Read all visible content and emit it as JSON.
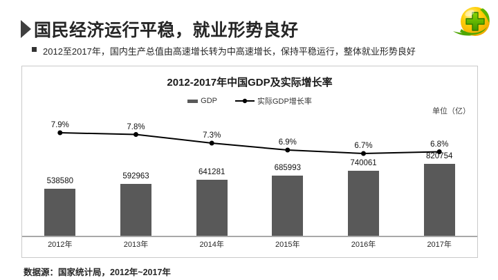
{
  "header": {
    "title": "国民经济运行平稳，就业形势良好",
    "bullet": "2012至2017年，国内生产总值由高速增长转为中高速增长，保持平稳运行，整体就业形势良好"
  },
  "chart_data": {
    "type": "bar+line",
    "title": "2012-2017年中国GDP及实际增长率",
    "unit_label": "单位（亿）",
    "categories": [
      "2012年",
      "2013年",
      "2014年",
      "2015年",
      "2016年",
      "2017年"
    ],
    "series": [
      {
        "name": "GDP",
        "type": "bar",
        "color": "#595959",
        "values": [
          538580,
          592963,
          641281,
          685993,
          740061,
          820754
        ]
      },
      {
        "name": "实际GDP增长率",
        "type": "line",
        "color": "#000000",
        "values": [
          7.9,
          7.8,
          7.3,
          6.9,
          6.7,
          6.8
        ],
        "labels": [
          "7.9%",
          "7.8%",
          "7.3%",
          "6.9%",
          "6.7%",
          "6.8%"
        ]
      }
    ],
    "legend_position": "top-center",
    "grid": false,
    "data_labels": true
  },
  "footer": {
    "source": "数据源：国家统计局，2012年~2017年"
  },
  "colors": {
    "bar": "#595959",
    "line": "#000000",
    "title_marker": "#3f3f3f",
    "logo_yellow": "#ffd00a",
    "logo_green": "#4ea602"
  }
}
